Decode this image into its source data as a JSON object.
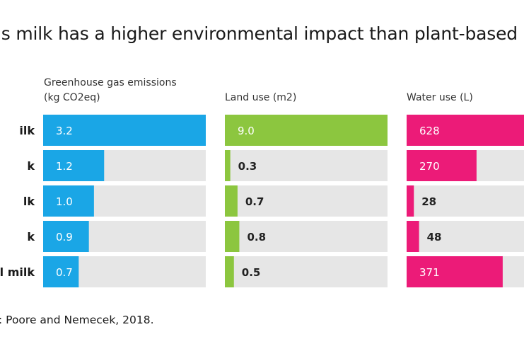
{
  "title": "’s milk has a higher environmental impact than plant-based",
  "source": ": Poore and Nemecek, 2018.",
  "chart_data": {
    "type": "bar",
    "orientation": "horizontal",
    "categories": [
      "ilk",
      "k",
      "lk",
      "k",
      "l milk"
    ],
    "panels": [
      {
        "label_lines": [
          "Greenhouse gas emissions",
          "(kg CO2eq)"
        ],
        "values": [
          3.2,
          1.2,
          1.0,
          0.9,
          0.7
        ],
        "value_labels": [
          "3.2",
          "1.2",
          "1.0",
          "0.9",
          "0.7"
        ],
        "xlim": [
          0,
          3.2
        ],
        "color": "#1aa6e6"
      },
      {
        "label_lines": [
          "Land use (m2)"
        ],
        "values": [
          9.0,
          0.3,
          0.7,
          0.8,
          0.5
        ],
        "value_labels": [
          "9.0",
          "0.3",
          "0.7",
          "0.8",
          "0.5"
        ],
        "xlim": [
          0,
          9.0
        ],
        "color": "#8cc63f"
      },
      {
        "label_lines": [
          "Water use (L)"
        ],
        "values": [
          628,
          270,
          28,
          48,
          371
        ],
        "value_labels": [
          "628",
          "270",
          "28",
          "48",
          "371"
        ],
        "xlim": [
          0,
          628
        ],
        "color": "#ec1b78"
      }
    ],
    "track_color": "#e6e6e6"
  }
}
